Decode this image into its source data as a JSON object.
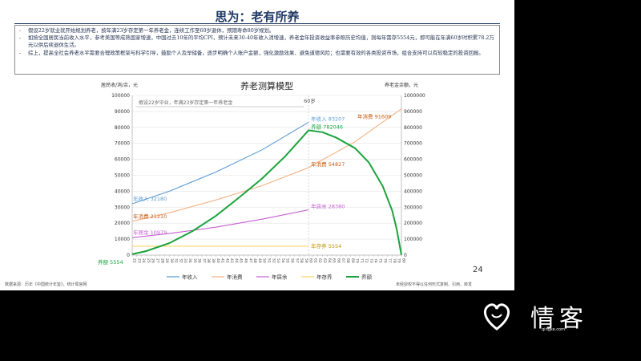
{
  "slide": {
    "title": "思为：老有所养",
    "bullets": [
      "假设22岁就业就开始规划养老，按年满23岁存定第一年养老金，连续工作至60岁退休，预期寿命80岁规划。",
      "如按全国居民当前收入水平，参考美国等成熟国家增速，中国过去10年的平均CPI，预计未来30-40年收入消增速，养老金年投资收益率参照历史均值，则每年需存5554元，即可能在年满60岁时积累78.2万元以供后续退休生活。",
      "综上，提高全社会养老水平需要合理政策框架与科学引导，鼓励个人及早储备，逐步明确个人账户金额，强化激励效果、避免道德风险；也需要有效的各类投资市场，组合支持可以有较稳定的投资回报。"
    ],
    "page_number": "24",
    "source": "数据来源：历年《中国统计年鉴》，统计局官网",
    "disclaimer": "未经授权不得以任何形式复制、引用、转发",
    "bullet_marker": "-"
  },
  "logo": {
    "text": "情客",
    "sub": "qingke.com",
    "icon": "heart-icon"
  },
  "chart_data": {
    "type": "line",
    "title": "养老测算模型",
    "ylabel_left": "居民收/消/余，元",
    "ylabel_right": "养老金余额，元",
    "annotation": "假设22岁毕业，年满23岁存定第一年养老金",
    "marker_label": "60岁",
    "ylim_left": [
      0,
      100000
    ],
    "ylim_right": [
      0,
      1000000
    ],
    "yticks_left": [
      "0",
      "10000",
      "20000",
      "30000",
      "40000",
      "50000",
      "60000",
      "70000",
      "80000",
      "90000",
      "100000"
    ],
    "yticks_right": [
      "0",
      "100000",
      "200000",
      "300000",
      "400000",
      "500000",
      "600000",
      "700000",
      "800000",
      "900000",
      "1000000"
    ],
    "x_start_age": 22,
    "x_end_age": 80,
    "grid": true,
    "legend_position": "bottom",
    "colors": {
      "income": "#5b9bd5",
      "consumption": "#f4b183",
      "surplus": "#c55fd1",
      "deposit": "#ffd966",
      "balance": "#1aa33c"
    },
    "series": [
      {
        "key": "income",
        "name": "年收入",
        "axis": "left",
        "points": [
          [
            22,
            32180
          ],
          [
            30,
            40000
          ],
          [
            40,
            52000
          ],
          [
            50,
            66000
          ],
          [
            60,
            83207
          ]
        ],
        "start_label": "年收入 32180",
        "end_label": "年收入 83207"
      },
      {
        "key": "consumption",
        "name": "年消费",
        "axis": "left",
        "points": [
          [
            22,
            21210
          ],
          [
            30,
            26500
          ],
          [
            40,
            34500
          ],
          [
            50,
            43500
          ],
          [
            60,
            54827
          ],
          [
            70,
            71000
          ],
          [
            80,
            91609
          ]
        ],
        "start_label": "年消费 21210",
        "mid_label": "年消费 54827",
        "end_label": "年消费 91609"
      },
      {
        "key": "surplus",
        "name": "年居余",
        "axis": "left",
        "points": [
          [
            22,
            10979
          ],
          [
            30,
            13500
          ],
          [
            40,
            17500
          ],
          [
            50,
            22500
          ],
          [
            60,
            28380
          ]
        ],
        "start_label": "年居余 10979",
        "end_label": "年居余 28380"
      },
      {
        "key": "deposit",
        "name": "年存养",
        "axis": "left",
        "points": [
          [
            22,
            5554
          ],
          [
            60,
            5554
          ]
        ],
        "end_label": "年存养 5554"
      },
      {
        "key": "balance",
        "name": "养额",
        "axis": "right",
        "points": [
          [
            22,
            5554
          ],
          [
            25,
            25000
          ],
          [
            30,
            75000
          ],
          [
            35,
            150000
          ],
          [
            40,
            245000
          ],
          [
            45,
            360000
          ],
          [
            50,
            480000
          ],
          [
            55,
            620000
          ],
          [
            60,
            782046
          ],
          [
            63,
            770000
          ],
          [
            66,
            735000
          ],
          [
            70,
            670000
          ],
          [
            73,
            580000
          ],
          [
            76,
            430000
          ],
          [
            78,
            280000
          ],
          [
            79,
            160000
          ],
          [
            80,
            0
          ]
        ],
        "start_label": "养额 5554",
        "peak_label": "养额 782046"
      }
    ],
    "legend": [
      "年收入",
      "年消费",
      "年居余",
      "年存养",
      "养额"
    ]
  }
}
